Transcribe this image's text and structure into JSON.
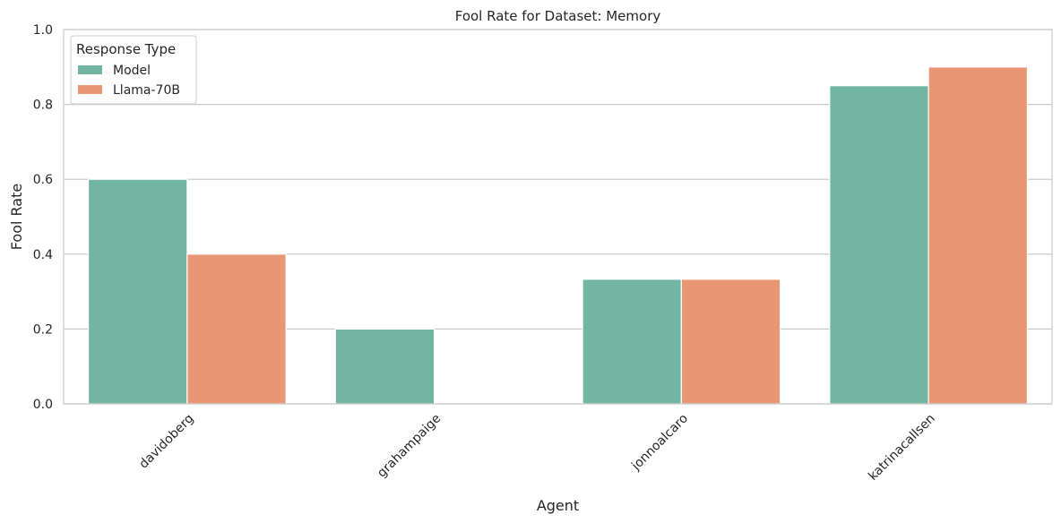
{
  "chart_data": {
    "type": "bar",
    "title": "Fool Rate for Dataset: Memory",
    "xlabel": "Agent",
    "ylabel": "Fool Rate",
    "categories": [
      "davidoberg",
      "grahampaige",
      "jonnoalcaro",
      "katrinacallsen"
    ],
    "series": [
      {
        "name": "Model",
        "color": "#72b6a1",
        "values": [
          0.6,
          0.2,
          0.333,
          0.85
        ]
      },
      {
        "name": "Llama-70B",
        "color": "#e99675",
        "values": [
          0.4,
          0.0,
          0.333,
          0.9
        ]
      }
    ],
    "ylim": [
      0,
      1
    ],
    "yticks": [
      "0.0",
      "0.2",
      "0.4",
      "0.6",
      "0.8",
      "1.0"
    ],
    "grid": true,
    "legend": {
      "title": "Response Type",
      "placement": "top-left"
    }
  }
}
